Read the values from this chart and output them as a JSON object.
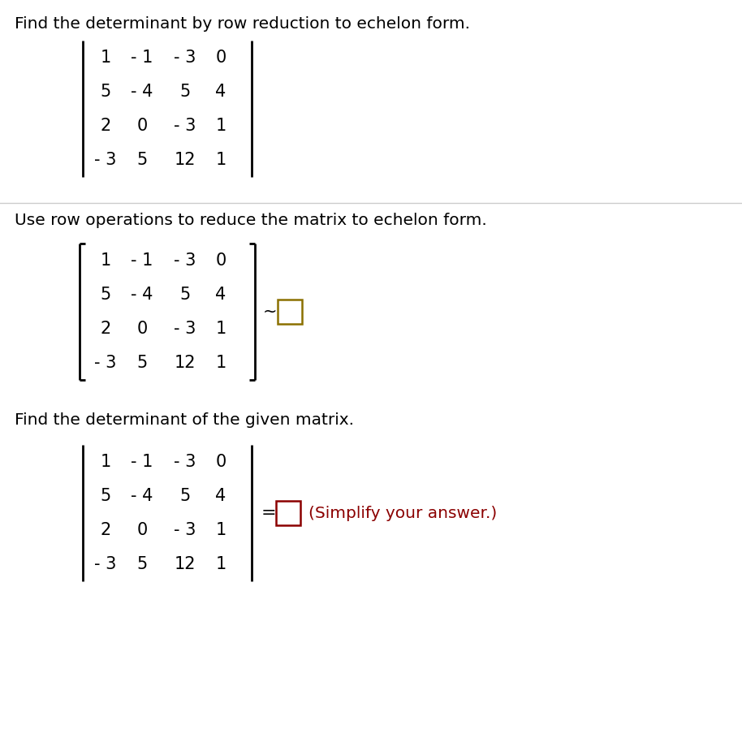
{
  "background_color": "#ffffff",
  "title_text": "Find the determinant by row reduction to echelon form.",
  "section2_text": "Use row operations to reduce the matrix to echelon form.",
  "section3_text": "Find the determinant of the given matrix.",
  "matrix_rows": [
    [
      "1",
      "- 1",
      "- 3",
      "0"
    ],
    [
      "5",
      "- 4",
      "5",
      "4"
    ],
    [
      "2",
      "0",
      "- 3",
      "1"
    ],
    [
      "- 3",
      "5",
      "12",
      "1"
    ]
  ],
  "simplify_text": "(Simplify your answer.)",
  "box_color_s2": "#8B7000",
  "box_color_s3": "#8B0000",
  "tilde_symbol": "~",
  "equals_symbol": "=",
  "font_size_title": 14.5,
  "font_size_matrix": 15,
  "divider_color": "#cccccc"
}
